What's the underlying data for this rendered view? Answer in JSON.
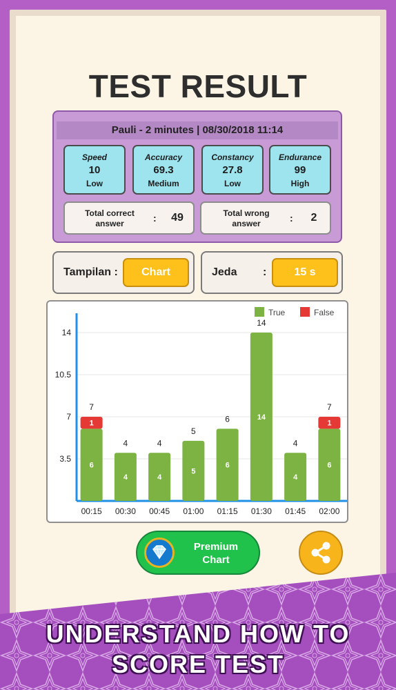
{
  "title": "TEST RESULT",
  "header": "Pauli - 2 minutes | 08/30/2018 11:14",
  "stats": [
    {
      "label": "Speed",
      "value": "10",
      "level": "Low"
    },
    {
      "label": "Accuracy",
      "value": "69.3",
      "level": "Medium"
    },
    {
      "label": "Constancy",
      "value": "27.8",
      "level": "Low"
    },
    {
      "label": "Endurance",
      "value": "99",
      "level": "High"
    }
  ],
  "totals": {
    "correct_label": "Total correct answer",
    "correct_value": "49",
    "wrong_label": "Total wrong answer",
    "wrong_value": "2",
    "colon": ":"
  },
  "controls": {
    "display_label": "Tampilan :",
    "display_value": "Chart",
    "pause_label": "Jeda",
    "pause_colon": ":",
    "pause_value": "15 s"
  },
  "chart_data": {
    "type": "bar",
    "stacked": true,
    "categories": [
      "00:15",
      "00:30",
      "00:45",
      "01:00",
      "01:15",
      "01:30",
      "01:45",
      "02:00"
    ],
    "series": [
      {
        "name": "True",
        "color": "#7cb342",
        "values": [
          6,
          4,
          4,
          5,
          6,
          14,
          4,
          6
        ]
      },
      {
        "name": "False",
        "color": "#e53935",
        "values": [
          1,
          0,
          0,
          0,
          0,
          0,
          0,
          1
        ]
      }
    ],
    "totals": [
      7,
      4,
      4,
      5,
      6,
      14,
      4,
      7
    ],
    "y_ticks": [
      "3.5",
      "7",
      "10.5",
      "14"
    ],
    "ylim": [
      0,
      14
    ],
    "legend": "top-right"
  },
  "buttons": {
    "premium_label": "Premium Chart",
    "share_icon": "share-icon",
    "gem_icon": "diamond-icon"
  },
  "banner": {
    "line1": "UNDERSTAND HOW TO",
    "line2": "SCORE TEST"
  },
  "colors": {
    "purple": "#b45fc6",
    "yellow": "#fec01b",
    "green": "#21c24b",
    "cyan": "#9ee4ee"
  }
}
